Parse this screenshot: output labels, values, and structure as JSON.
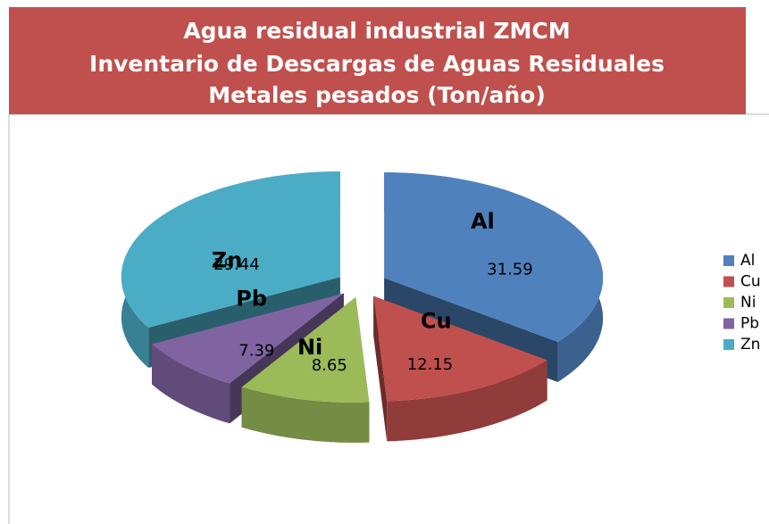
{
  "chart_data": {
    "type": "pie3d",
    "title": [
      "Agua residual industrial ZMCM",
      "Inventario de Descargas de Aguas Residuales",
      "Metales pesados (Ton/año)"
    ],
    "categories": [
      "Al",
      "Cu",
      "Ni",
      "Pb",
      "Zn"
    ],
    "values": [
      31.59,
      12.15,
      8.65,
      7.39,
      29.44
    ],
    "colors": [
      "#4f81bd",
      "#c0504d",
      "#9bbb59",
      "#8064a2",
      "#4bacc6"
    ],
    "legend": "right"
  }
}
